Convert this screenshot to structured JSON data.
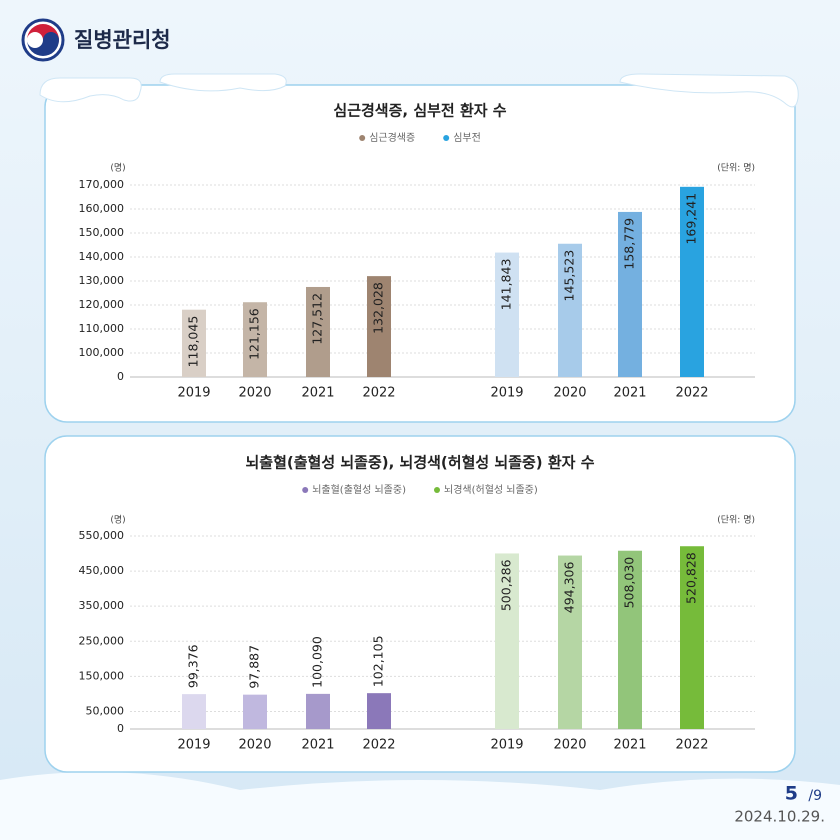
{
  "header": {
    "org": "질병관리청"
  },
  "chart_data": [
    {
      "type": "bar",
      "title": "심근경색증, 심부전 환자 수",
      "y_unit": "(명)",
      "unit_note": "(단위: 명)",
      "categories": [
        "2019",
        "2020",
        "2021",
        "2022"
      ],
      "ylim": [
        0,
        170000
      ],
      "y_break": true,
      "yticks": [
        0,
        {
          "value": 100000,
          "label": "100,000"
        },
        {
          "value": 110000,
          "label": "110,000"
        },
        {
          "value": 120000,
          "label": "120,000"
        },
        {
          "value": 130000,
          "label": "130,000"
        },
        {
          "value": 140000,
          "label": "140,000"
        },
        {
          "value": 150000,
          "label": "150,000"
        },
        {
          "value": 160000,
          "label": "160,000"
        },
        {
          "value": 170000,
          "label": "170,000"
        }
      ],
      "grid": true,
      "series": [
        {
          "name": "심근경색증",
          "color": "#9e8470",
          "colors": [
            "#d9cfc6",
            "#c4b5a7",
            "#b09d8c",
            "#9e8470"
          ],
          "values": [
            118045,
            121156,
            127512,
            132028
          ],
          "value_labels": [
            "118,045",
            "121,156",
            "127,512",
            "132,028"
          ]
        },
        {
          "name": "심부전",
          "color": "#29a3e0",
          "colors": [
            "#cfe1f2",
            "#a7cbea",
            "#74b0e0",
            "#29a3e0"
          ],
          "values": [
            141843,
            145523,
            158779,
            169241
          ],
          "value_labels": [
            "141,843",
            "145,523",
            "158,779",
            "169,241"
          ]
        }
      ]
    },
    {
      "type": "bar",
      "title": "뇌출혈(출혈성 뇌졸중), 뇌경색(허혈성 뇌졸중) 환자 수",
      "y_unit": "(명)",
      "unit_note": "(단위: 명)",
      "categories": [
        "2019",
        "2020",
        "2021",
        "2022"
      ],
      "ylim": [
        0,
        550000
      ],
      "y_break": false,
      "yticks": [
        0,
        {
          "value": 50000,
          "label": "50,000"
        },
        {
          "value": 150000,
          "label": "150,000"
        },
        {
          "value": 250000,
          "label": "250,000"
        },
        {
          "value": 350000,
          "label": "350,000"
        },
        {
          "value": 450000,
          "label": "450,000"
        },
        {
          "value": 550000,
          "label": "550,000"
        }
      ],
      "grid": true,
      "series": [
        {
          "name": "뇌출혈(출혈성 뇌졸중)",
          "color": "#8b78b9",
          "colors": [
            "#dcd8ee",
            "#c0b8df",
            "#a699cb",
            "#8b78b9"
          ],
          "values": [
            99376,
            97887,
            100090,
            102105
          ],
          "value_labels": [
            "99,376",
            "97,887",
            "100,090",
            "102,105"
          ]
        },
        {
          "name": "뇌경색(허혈성 뇌졸중)",
          "color": "#76bb3a",
          "colors": [
            "#d8e9cf",
            "#b5d6a4",
            "#92c57a",
            "#76bb3a"
          ],
          "values": [
            500286,
            494306,
            508030,
            520828
          ],
          "value_labels": [
            "500,286",
            "494,306",
            "508,030",
            "520,828"
          ]
        }
      ]
    }
  ],
  "footer": {
    "page": "5",
    "total": "/9",
    "date": "2024.10.29."
  }
}
